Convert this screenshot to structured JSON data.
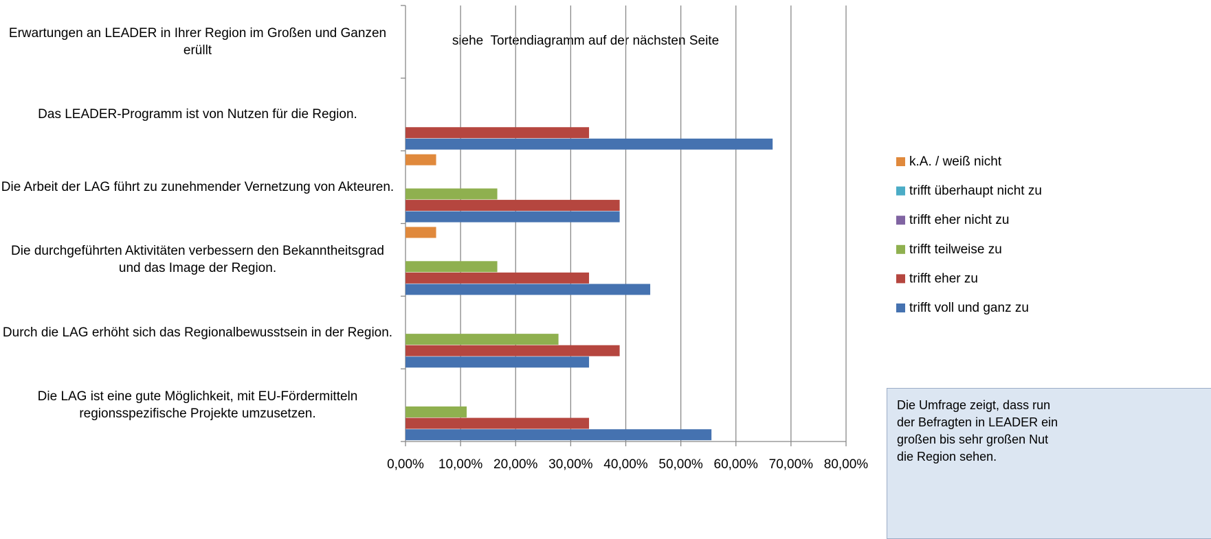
{
  "chart_data": {
    "type": "hbar",
    "categories": [
      "Erwartungen an LEADER in Ihrer Region im Großen und Ganzen erüllt",
      "Das LEADER-Programm ist von Nutzen für die Region.",
      "Die Arbeit der LAG führt zu zunehmender Vernetzung von Akteuren.",
      "Die durchgeführten Aktivitäten verbessern den Bekanntheitsgrad und das Image der Region.",
      "Durch die LAG erhöht sich das Regionalbewusstsein in der Region.",
      "Die LAG ist eine gute Möglichkeit, mit EU-Fördermitteln regionsspezifische Projekte umzusetzen."
    ],
    "series": [
      {
        "name": "k.A. / weiß nicht",
        "color": "#e0893c",
        "values": [
          null,
          0,
          5.56,
          5.56,
          0,
          0
        ]
      },
      {
        "name": "trifft überhaupt nicht zu",
        "color": "#4bacc6",
        "values": [
          null,
          0,
          0,
          0,
          0,
          0
        ]
      },
      {
        "name": "trifft eher nicht zu",
        "color": "#8064a2",
        "values": [
          null,
          0,
          0,
          0,
          0,
          0
        ]
      },
      {
        "name": "trifft teilweise zu",
        "color": "#8fb04f",
        "values": [
          null,
          0,
          16.67,
          16.67,
          27.78,
          11.11
        ]
      },
      {
        "name": "trifft eher zu",
        "color": "#b5463f",
        "values": [
          null,
          33.33,
          38.89,
          33.33,
          38.89,
          33.33
        ]
      },
      {
        "name": "trifft voll und ganz zu",
        "color": "#4572b0",
        "values": [
          null,
          66.67,
          38.89,
          44.44,
          33.33,
          55.56
        ]
      }
    ],
    "xlim": [
      0,
      80
    ],
    "xticks": [
      {
        "value": 0,
        "label": "0,00%"
      },
      {
        "value": 10,
        "label": "10,00%"
      },
      {
        "value": 20,
        "label": "20,00%"
      },
      {
        "value": 30,
        "label": "30,00%"
      },
      {
        "value": 40,
        "label": "40,00%"
      },
      {
        "value": 50,
        "label": "50,00%"
      },
      {
        "value": 60,
        "label": "60,00%"
      },
      {
        "value": 70,
        "label": "70,00%"
      },
      {
        "value": 80,
        "label": "80,00%"
      }
    ],
    "grid": true,
    "annotation": "siehe  Tortendiagramm auf der nächsten Seite",
    "legend": "right",
    "note": [
      "Die Umfrage zeigt, dass run",
      "der Befragten in LEADER ein",
      "großen bis sehr großen Nut",
      "die Region sehen."
    ]
  }
}
